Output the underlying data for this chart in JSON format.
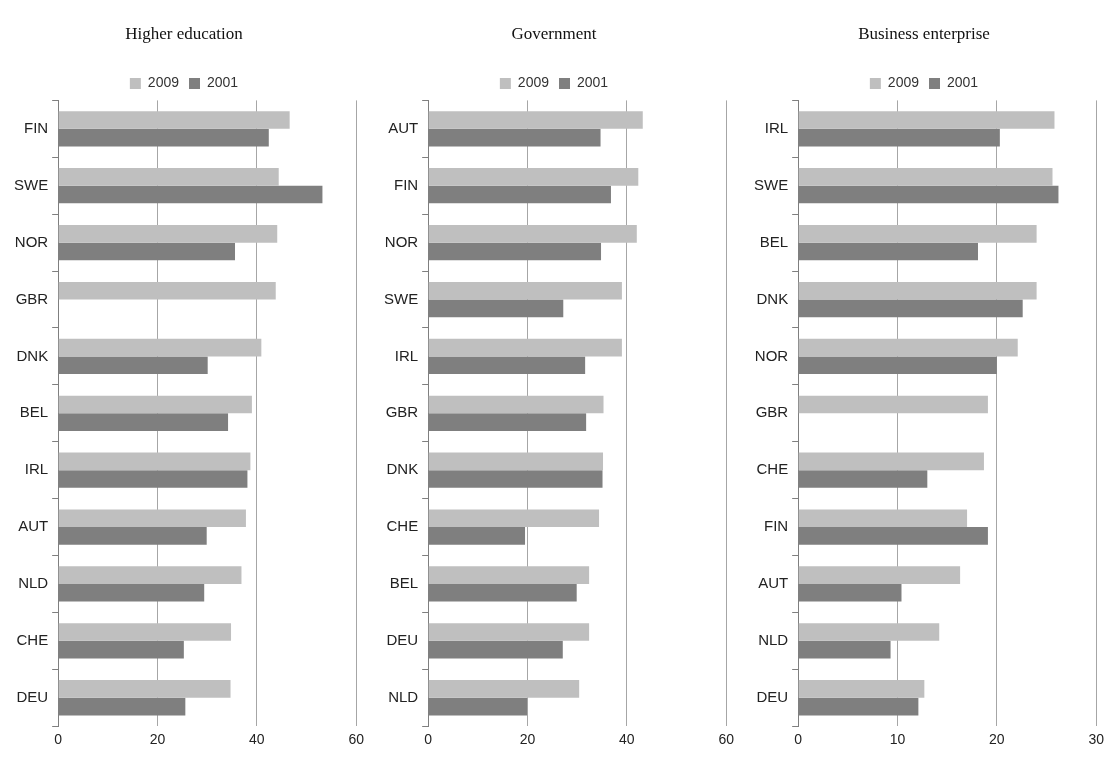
{
  "chart_data": [
    {
      "type": "bar",
      "orientation": "horizontal",
      "title": "Higher education",
      "categories": [
        "FIN",
        "SWE",
        "NOR",
        "GBR",
        "DNK",
        "BEL",
        "IRL",
        "AUT",
        "NLD",
        "CHE",
        "DEU"
      ],
      "series": [
        {
          "name": "2009",
          "color": "#bfbfbf",
          "values": [
            46.6,
            44.4,
            44.1,
            43.8,
            40.9,
            39.0,
            38.7,
            37.8,
            36.9,
            34.8,
            34.7
          ]
        },
        {
          "name": "2001",
          "color": "#7f7f7f",
          "values": [
            42.4,
            53.2,
            35.6,
            null,
            30.1,
            34.2,
            38.1,
            29.9,
            29.4,
            25.3,
            25.6
          ]
        }
      ],
      "xlim": [
        0,
        60
      ],
      "xticks": [
        0,
        20,
        40,
        60
      ],
      "grid": "x",
      "legend": "top"
    },
    {
      "type": "bar",
      "orientation": "horizontal",
      "title": "Government",
      "categories": [
        "AUT",
        "FIN",
        "NOR",
        "SWE",
        "IRL",
        "GBR",
        "DNK",
        "CHE",
        "BEL",
        "DEU",
        "NLD"
      ],
      "series": [
        {
          "name": "2009",
          "color": "#bfbfbf",
          "values": [
            43.2,
            42.3,
            42.0,
            39.0,
            39.0,
            35.3,
            35.2,
            34.4,
            32.4,
            32.4,
            30.4
          ]
        },
        {
          "name": "2001",
          "color": "#7f7f7f",
          "values": [
            34.7,
            36.8,
            34.8,
            27.2,
            31.6,
            31.8,
            35.1,
            19.5,
            29.9,
            27.1,
            19.9
          ]
        }
      ],
      "xlim": [
        0,
        60
      ],
      "xticks": [
        0,
        20,
        40,
        60
      ],
      "grid": "x",
      "legend": "top"
    },
    {
      "type": "bar",
      "orientation": "horizontal",
      "title": "Business enterprise",
      "categories": [
        "IRL",
        "SWE",
        "BEL",
        "DNK",
        "NOR",
        "GBR",
        "CHE",
        "FIN",
        "AUT",
        "NLD",
        "DEU"
      ],
      "series": [
        {
          "name": "2009",
          "color": "#bfbfbf",
          "values": [
            25.8,
            25.6,
            24.0,
            24.0,
            22.1,
            19.1,
            18.7,
            17.0,
            16.3,
            14.2,
            12.7
          ]
        },
        {
          "name": "2001",
          "color": "#7f7f7f",
          "values": [
            20.3,
            26.2,
            18.1,
            22.6,
            20.0,
            null,
            13.0,
            19.1,
            10.4,
            9.3,
            12.1
          ]
        }
      ],
      "xlim": [
        0,
        30
      ],
      "xticks": [
        0,
        10,
        20,
        30
      ],
      "grid": "x",
      "legend": "top"
    }
  ]
}
